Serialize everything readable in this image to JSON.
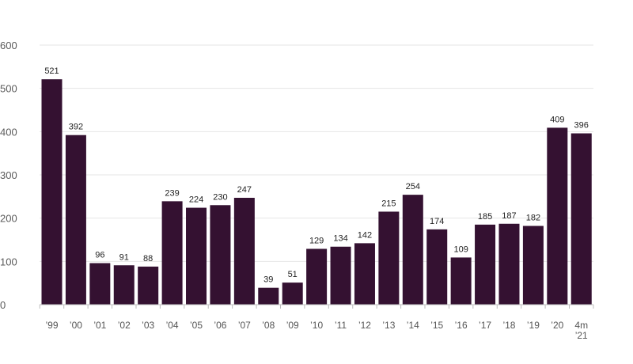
{
  "chart_data": {
    "type": "bar",
    "title": "",
    "xlabel": "",
    "ylabel": "",
    "categories": [
      "’99",
      "’00",
      "’01",
      "’02",
      "’03",
      "’04",
      "’05",
      "’06",
      "’07",
      "’08",
      "’09",
      "’10",
      "’11",
      "’12",
      "’13",
      "’14",
      "’15",
      "’16",
      "’17",
      "’18",
      "’19",
      "’20",
      "4m\n’21"
    ],
    "values": [
      521,
      392,
      96,
      91,
      88,
      239,
      224,
      230,
      247,
      39,
      51,
      129,
      134,
      142,
      215,
      254,
      174,
      109,
      185,
      187,
      182,
      409,
      396
    ],
    "ylim": [
      0,
      600
    ],
    "yticks": [
      0,
      100,
      200,
      300,
      400,
      500,
      600
    ],
    "ytick_labels": [
      "0",
      "100",
      "200",
      "300",
      "400",
      "500",
      "600"
    ],
    "grid": true,
    "bar_color": "#341131",
    "grid_color": "#e6e6e6",
    "axis_color": "#bdbdbd"
  }
}
